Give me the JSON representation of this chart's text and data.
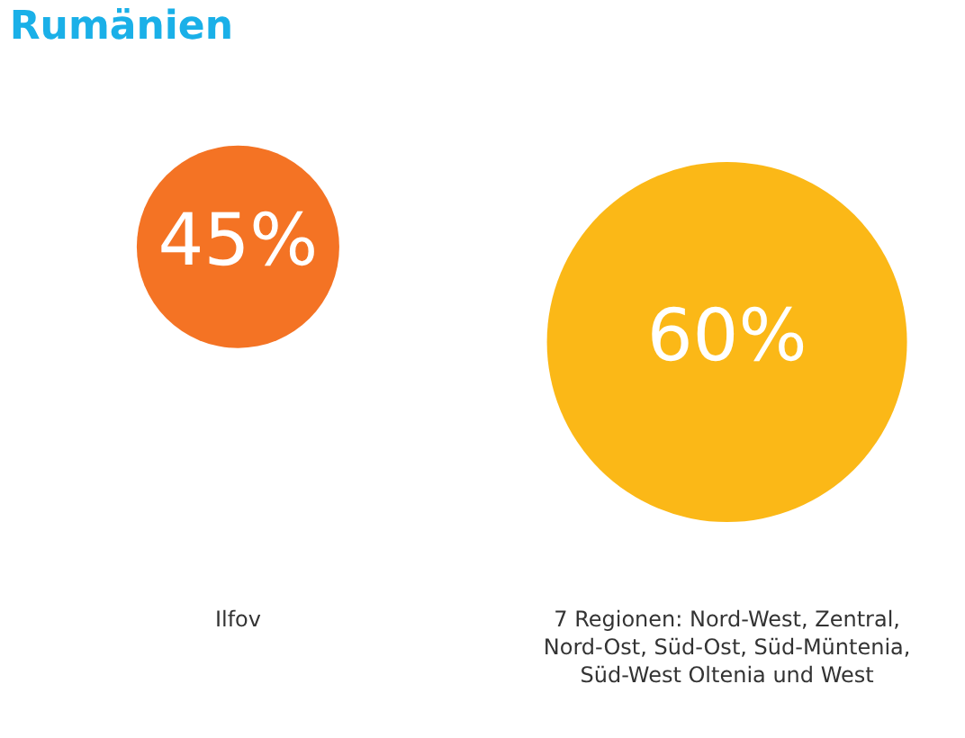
{
  "chart_data": {
    "type": "other",
    "title": "Rumänien",
    "categories": [
      "Ilfov",
      "7 Regionen: Nord-West, Zentral, Nord-Ost, Süd-Ost, Süd-Müntenia, Süd-West Oltenia und West"
    ],
    "values": [
      45,
      60
    ],
    "colors": [
      "#f47324",
      "#fbb817"
    ],
    "value_labels": [
      "45%",
      "60%"
    ]
  }
}
